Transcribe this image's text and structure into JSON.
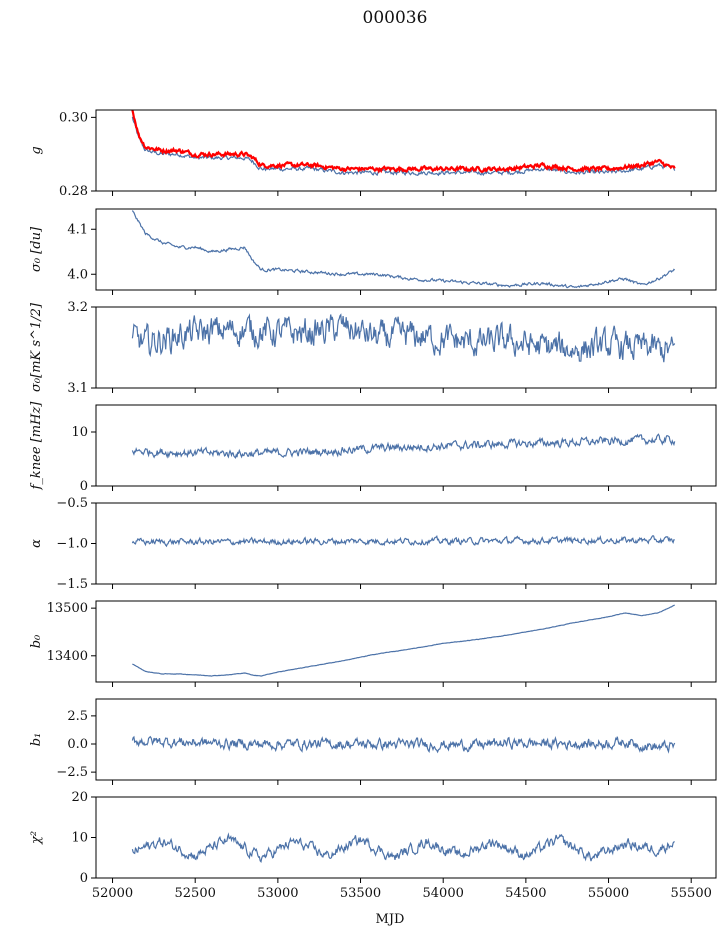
{
  "title": "000036",
  "xlabel": "MJD",
  "colors": {
    "series": "#4c72a8",
    "overlay": "#ff0000",
    "frame": "#000000"
  },
  "chart_data": [
    {
      "type": "line",
      "ylabel": "g",
      "ylim": [
        0.28,
        0.302
      ],
      "yticks": [
        "0.30",
        "0.28"
      ],
      "yticks_values": [
        0.3,
        0.28
      ],
      "x": [
        52120,
        52160,
        52200,
        52300,
        52400,
        52500,
        52600,
        52700,
        52800,
        52850,
        52900,
        53000,
        53200,
        53400,
        53600,
        53800,
        54000,
        54200,
        54400,
        54600,
        54800,
        55000,
        55200,
        55300,
        55400
      ],
      "series": [
        {
          "values": [
            0.3,
            0.294,
            0.291,
            0.29,
            0.29,
            0.289,
            0.289,
            0.289,
            0.289,
            0.288,
            0.286,
            0.286,
            0.286,
            0.285,
            0.285,
            0.285,
            0.285,
            0.285,
            0.285,
            0.286,
            0.285,
            0.285,
            0.286,
            0.287,
            0.286
          ]
        },
        {
          "values": [
            0.302,
            0.295,
            0.292,
            0.291,
            0.291,
            0.29,
            0.29,
            0.29,
            0.29,
            0.289,
            0.287,
            0.287,
            0.287,
            0.286,
            0.286,
            0.286,
            0.286,
            0.286,
            0.286,
            0.287,
            0.286,
            0.286,
            0.287,
            0.288,
            0.286
          ]
        }
      ]
    },
    {
      "type": "line",
      "ylabel": "σ₀ [du]",
      "ylim": [
        3.965,
        4.145
      ],
      "yticks": [
        "4.1",
        "4.0"
      ],
      "yticks_values": [
        4.1,
        4.0
      ],
      "x": [
        52120,
        52200,
        52300,
        52400,
        52500,
        52600,
        52700,
        52800,
        52850,
        52900,
        53000,
        53200,
        53400,
        53600,
        53800,
        54000,
        54200,
        54400,
        54600,
        54800,
        55000,
        55100,
        55200,
        55300,
        55400
      ],
      "series": [
        {
          "values": [
            4.14,
            4.09,
            4.07,
            4.06,
            4.06,
            4.05,
            4.055,
            4.06,
            4.03,
            4.01,
            4.01,
            4.005,
            4.0,
            4.0,
            3.99,
            3.985,
            3.98,
            3.975,
            3.98,
            3.97,
            3.985,
            3.99,
            3.975,
            3.99,
            4.01
          ]
        }
      ]
    },
    {
      "type": "line",
      "ylabel": "σ₀[mK s^1/2]",
      "ylim": [
        3.1,
        3.2
      ],
      "yticks": [
        "3.2",
        "3.1"
      ],
      "yticks_values": [
        3.2,
        3.1
      ],
      "x": [
        52120,
        52200,
        52400,
        52600,
        52800,
        53000,
        53200,
        53400,
        53600,
        53800,
        54000,
        54200,
        54400,
        54600,
        54800,
        55000,
        55200,
        55400
      ],
      "series": [
        {
          "values": [
            3.16,
            3.155,
            3.165,
            3.17,
            3.172,
            3.168,
            3.168,
            3.175,
            3.162,
            3.165,
            3.16,
            3.155,
            3.158,
            3.15,
            3.148,
            3.152,
            3.15,
            3.145
          ]
        }
      ]
    },
    {
      "type": "line",
      "ylabel": "f_knee [mHz]",
      "ylim": [
        0,
        15
      ],
      "yticks": [
        "10",
        "0"
      ],
      "yticks_values": [
        10,
        0
      ],
      "x": [
        52120,
        52400,
        52800,
        53200,
        53600,
        54000,
        54400,
        54800,
        55200,
        55400
      ],
      "series": [
        {
          "values": [
            6.5,
            6.2,
            6.0,
            6.3,
            7.0,
            7.4,
            7.8,
            8.1,
            8.5,
            8.6
          ]
        }
      ]
    },
    {
      "type": "line",
      "ylabel": "α",
      "ylim": [
        -1.5,
        -0.5
      ],
      "yticks": [
        "−0.5",
        "−1.0",
        "−1.5"
      ],
      "yticks_values": [
        -0.5,
        -1.0,
        -1.5
      ],
      "x": [
        52120,
        52800,
        53500,
        54200,
        54900,
        55400
      ],
      "series": [
        {
          "values": [
            -0.98,
            -0.98,
            -0.97,
            -0.97,
            -0.96,
            -0.96
          ]
        }
      ]
    },
    {
      "type": "line",
      "ylabel": "b₀",
      "ylim": [
        13345,
        13515
      ],
      "yticks": [
        "13500",
        "13400"
      ],
      "yticks_values": [
        13500,
        13400
      ],
      "x": [
        52120,
        52200,
        52300,
        52400,
        52500,
        52600,
        52700,
        52800,
        52850,
        52900,
        53000,
        53200,
        53400,
        53600,
        53800,
        54000,
        54200,
        54400,
        54600,
        54800,
        55000,
        55100,
        55200,
        55300,
        55400
      ],
      "series": [
        {
          "values": [
            13383,
            13367,
            13362,
            13362,
            13360,
            13358,
            13360,
            13364,
            13359,
            13358,
            13366,
            13378,
            13390,
            13404,
            13414,
            13426,
            13434,
            13444,
            13456,
            13470,
            13482,
            13490,
            13484,
            13490,
            13506
          ]
        }
      ]
    },
    {
      "type": "line",
      "ylabel": "b₁",
      "ylim": [
        -3.2,
        4.0
      ],
      "yticks": [
        "2.5",
        "0.0",
        "−2.5"
      ],
      "yticks_values": [
        2.5,
        0.0,
        -2.5
      ],
      "x": [
        52120,
        52800,
        53500,
        54200,
        54400,
        54900,
        55100,
        55300,
        55400
      ],
      "series": [
        {
          "values": [
            0.3,
            0.0,
            0.0,
            -0.1,
            0.1,
            0.0,
            0.2,
            -0.3,
            -0.2
          ]
        }
      ]
    },
    {
      "type": "line",
      "ylabel": "χ²",
      "ylim": [
        0,
        20
      ],
      "yticks": [
        "20",
        "10",
        "0"
      ],
      "yticks_values": [
        20,
        10,
        0
      ],
      "x": [
        52120,
        52300,
        52500,
        52700,
        52900,
        53100,
        53300,
        53500,
        53700,
        53900,
        54100,
        54300,
        54500,
        54700,
        54900,
        55100,
        55300,
        55400
      ],
      "series": [
        {
          "values": [
            6.5,
            9.0,
            5.5,
            9.5,
            5.0,
            9.0,
            5.5,
            9.5,
            5.0,
            9.0,
            5.5,
            9.0,
            5.5,
            9.5,
            5.0,
            8.5,
            7.0,
            9.0
          ]
        }
      ]
    }
  ],
  "shared_x": {
    "xlim": [
      51900,
      55650
    ],
    "xticks": [
      "52000",
      "52500",
      "53000",
      "53500",
      "54000",
      "54500",
      "55000",
      "55500"
    ],
    "xticks_values": [
      52000,
      52500,
      53000,
      53500,
      54000,
      54500,
      55000,
      55500
    ]
  }
}
